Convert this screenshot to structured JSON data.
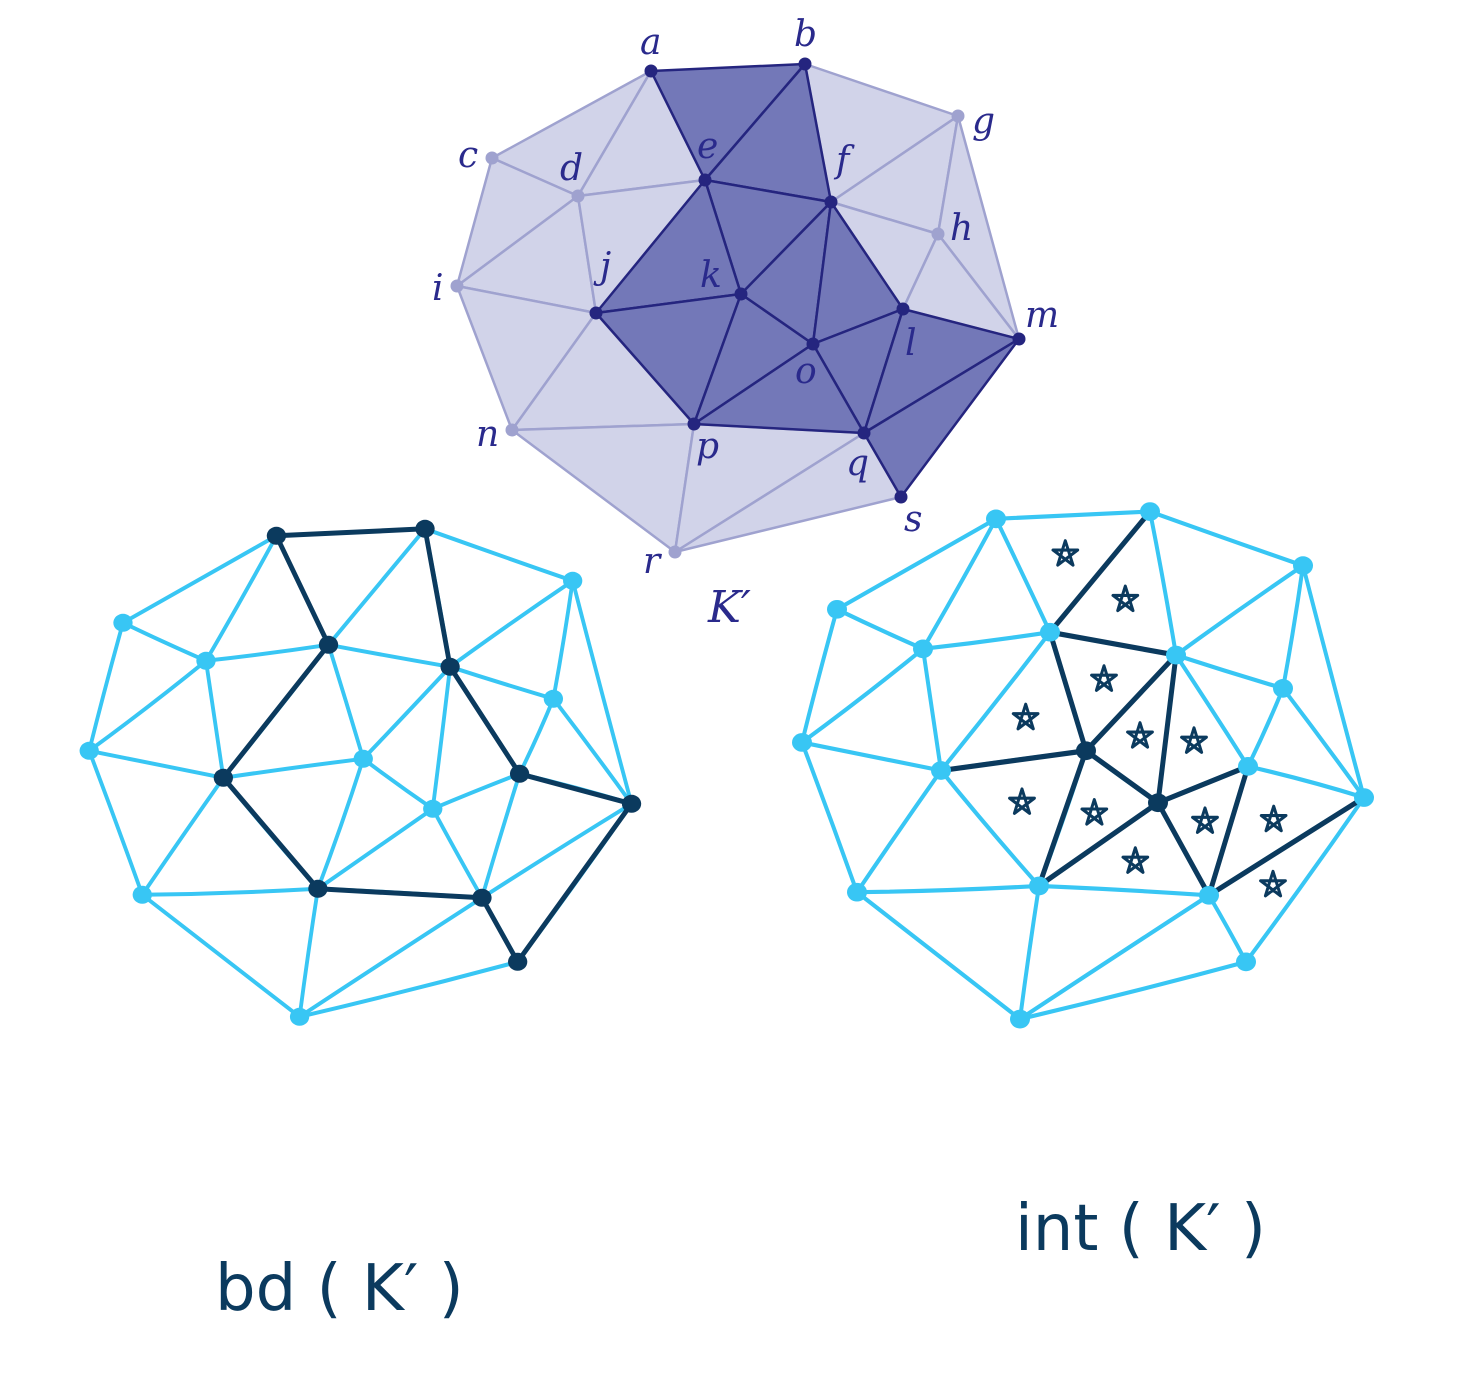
{
  "colors": {
    "light_fill": "#d1d3e9",
    "light_stroke": "#9fa2cf",
    "dark_fill": "#7378b8",
    "dark_stroke": "#25257f",
    "label": "#2a2a8c",
    "sketch": "#38c6f4",
    "sketch_dark": "#0b3a5e"
  },
  "labels": {
    "a": "a",
    "b": "b",
    "c": "c",
    "d": "d",
    "e": "e",
    "f": "f",
    "g": "g",
    "h": "h",
    "i": "i",
    "j": "j",
    "k": "k",
    "l": "l",
    "m": "m",
    "n": "n",
    "o": "o",
    "p": "p",
    "q": "q",
    "r": "r",
    "s": "s"
  },
  "title_top": "K′",
  "caption_left": "bd ( K′ )",
  "caption_right": "int ( K′ )",
  "vertices": [
    "a",
    "b",
    "c",
    "d",
    "e",
    "f",
    "g",
    "h",
    "i",
    "j",
    "k",
    "l",
    "m",
    "n",
    "o",
    "p",
    "q",
    "r",
    "s"
  ],
  "subcomplex_vertices": [
    "a",
    "b",
    "e",
    "f",
    "j",
    "k",
    "l",
    "m",
    "o",
    "p",
    "q",
    "s"
  ],
  "light_triangles": [
    [
      "a",
      "c",
      "d"
    ],
    [
      "a",
      "d",
      "e"
    ],
    [
      "c",
      "d",
      "i"
    ],
    [
      "d",
      "i",
      "j"
    ],
    [
      "d",
      "e",
      "j"
    ],
    [
      "b",
      "f",
      "g"
    ],
    [
      "f",
      "g",
      "h"
    ],
    [
      "f",
      "h",
      "l"
    ],
    [
      "g",
      "h",
      "m"
    ],
    [
      "h",
      "l",
      "m"
    ],
    [
      "i",
      "j",
      "n"
    ],
    [
      "j",
      "n",
      "p"
    ],
    [
      "n",
      "p",
      "r"
    ],
    [
      "p",
      "q",
      "r"
    ],
    [
      "q",
      "r",
      "s"
    ]
  ],
  "dark_triangles": [
    [
      "a",
      "b",
      "e"
    ],
    [
      "b",
      "e",
      "f"
    ],
    [
      "e",
      "f",
      "k"
    ],
    [
      "e",
      "j",
      "k"
    ],
    [
      "j",
      "k",
      "p"
    ],
    [
      "k",
      "o",
      "p"
    ],
    [
      "k",
      "f",
      "o"
    ],
    [
      "f",
      "o",
      "l"
    ],
    [
      "o",
      "l",
      "q"
    ],
    [
      "o",
      "p",
      "q"
    ],
    [
      "l",
      "q",
      "m"
    ],
    [
      "q",
      "m",
      "s"
    ]
  ],
  "boundary_edges": [
    [
      "a",
      "b"
    ],
    [
      "b",
      "f"
    ],
    [
      "f",
      "l"
    ],
    [
      "l",
      "m"
    ],
    [
      "m",
      "s"
    ],
    [
      "s",
      "q"
    ],
    [
      "q",
      "p"
    ],
    [
      "p",
      "j"
    ],
    [
      "j",
      "e"
    ],
    [
      "e",
      "a"
    ]
  ],
  "interior_edges": [
    [
      "b",
      "e"
    ],
    [
      "e",
      "k"
    ],
    [
      "e",
      "f"
    ],
    [
      "f",
      "k"
    ],
    [
      "f",
      "o"
    ],
    [
      "k",
      "j"
    ],
    [
      "k",
      "o"
    ],
    [
      "k",
      "p"
    ],
    [
      "o",
      "l"
    ],
    [
      "o",
      "p"
    ],
    [
      "o",
      "q"
    ],
    [
      "l",
      "q"
    ],
    [
      "q",
      "m"
    ]
  ],
  "interior_vertices": [
    "k",
    "o"
  ],
  "star_marks": 12
}
